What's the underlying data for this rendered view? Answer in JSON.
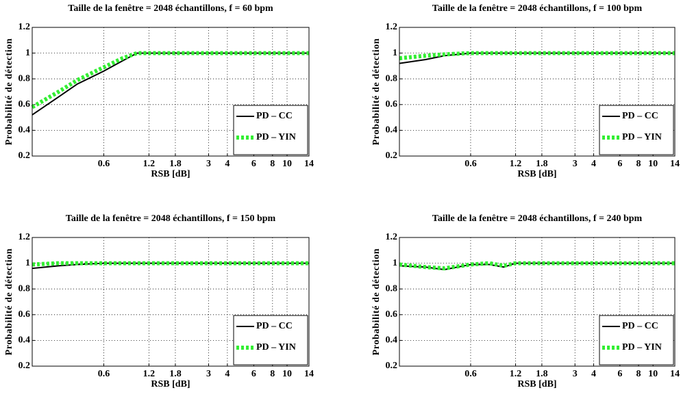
{
  "chart_data": [
    {
      "type": "line",
      "title": "Taille de la fenêtre = 2048 échantillons, f = 60 bpm",
      "x_label": "RSB [dB]",
      "y_label": "Probabilité de détection",
      "x": [
        0.2,
        0.3,
        0.4,
        0.6,
        0.8,
        1.0,
        1.2,
        1.8,
        3,
        4,
        6,
        8,
        10,
        14
      ],
      "series": [
        {
          "name": "PD – CC",
          "color": "#000000",
          "values": [
            0.52,
            0.66,
            0.76,
            0.86,
            0.94,
            1.0,
            1.0,
            1.0,
            1.0,
            1.0,
            1.0,
            1.0,
            1.0,
            1.0
          ]
        },
        {
          "name": "PD – YIN",
          "color": "#33ee33",
          "values": [
            0.58,
            0.7,
            0.79,
            0.89,
            0.96,
            1.0,
            1.0,
            1.0,
            1.0,
            1.0,
            1.0,
            1.0,
            1.0,
            1.0
          ]
        }
      ],
      "xlim": [
        0.2,
        14
      ],
      "xticks": [
        0.6,
        1.2,
        1.8,
        3,
        4,
        6,
        8,
        10,
        14
      ],
      "xscale": "log",
      "ylim": [
        0.2,
        1.2
      ],
      "yticks": [
        0.2,
        0.4,
        0.6,
        0.8,
        1,
        1.2
      ],
      "grid": true,
      "legend": "lower right"
    },
    {
      "type": "line",
      "title": "Taille de la fenêtre = 2048 échantillons, f = 100 bpm",
      "x_label": "RSB [dB]",
      "y_label": "Probabilité de détection",
      "x": [
        0.2,
        0.3,
        0.4,
        0.6,
        0.8,
        1.0,
        1.2,
        1.8,
        3,
        4,
        6,
        8,
        10,
        14
      ],
      "series": [
        {
          "name": "PD – CC",
          "color": "#000000",
          "values": [
            0.92,
            0.95,
            0.98,
            1.0,
            1.0,
            1.0,
            1.0,
            1.0,
            1.0,
            1.0,
            1.0,
            1.0,
            1.0,
            1.0
          ]
        },
        {
          "name": "PD – YIN",
          "color": "#33ee33",
          "values": [
            0.96,
            0.98,
            0.99,
            1.0,
            1.0,
            1.0,
            1.0,
            1.0,
            1.0,
            1.0,
            1.0,
            1.0,
            1.0,
            1.0
          ]
        }
      ],
      "xlim": [
        0.2,
        14
      ],
      "xticks": [
        0.6,
        1.2,
        1.8,
        3,
        4,
        6,
        8,
        10,
        14
      ],
      "xscale": "log",
      "ylim": [
        0.2,
        1.2
      ],
      "yticks": [
        0.2,
        0.4,
        0.6,
        0.8,
        1,
        1.2
      ],
      "grid": true,
      "legend": "lower right"
    },
    {
      "type": "line",
      "title": "Taille de la fenêtre = 2048 échantillons, f = 150 bpm",
      "x_label": "RSB [dB]",
      "y_label": "Probabilité de détection",
      "x": [
        0.2,
        0.3,
        0.4,
        0.6,
        0.8,
        1.0,
        1.2,
        1.8,
        3,
        4,
        6,
        8,
        10,
        14
      ],
      "series": [
        {
          "name": "PD – CC",
          "color": "#000000",
          "values": [
            0.96,
            0.98,
            0.99,
            1.0,
            1.0,
            1.0,
            1.0,
            1.0,
            1.0,
            1.0,
            1.0,
            1.0,
            1.0,
            1.0
          ]
        },
        {
          "name": "PD – YIN",
          "color": "#33ee33",
          "values": [
            0.99,
            1.0,
            1.0,
            1.0,
            1.0,
            1.0,
            1.0,
            1.0,
            1.0,
            1.0,
            1.0,
            1.0,
            1.0,
            1.0
          ]
        }
      ],
      "xlim": [
        0.2,
        14
      ],
      "xticks": [
        0.6,
        1.2,
        1.8,
        3,
        4,
        6,
        8,
        10,
        14
      ],
      "xscale": "log",
      "ylim": [
        0.2,
        1.2
      ],
      "yticks": [
        0.2,
        0.4,
        0.6,
        0.8,
        1,
        1.2
      ],
      "grid": true,
      "legend": "lower right"
    },
    {
      "type": "line",
      "title": "Taille de la fenêtre = 2048 échantillons, f = 240 bpm",
      "x_label": "RSB [dB]",
      "y_label": "Probabilité de détection",
      "x": [
        0.2,
        0.3,
        0.4,
        0.6,
        0.8,
        1.0,
        1.2,
        1.8,
        3,
        4,
        6,
        8,
        10,
        14
      ],
      "series": [
        {
          "name": "PD – CC",
          "color": "#000000",
          "values": [
            0.98,
            0.97,
            0.95,
            0.99,
            0.99,
            0.97,
            1.0,
            1.0,
            1.0,
            1.0,
            1.0,
            1.0,
            1.0,
            1.0
          ]
        },
        {
          "name": "PD – YIN",
          "color": "#33ee33",
          "values": [
            0.99,
            0.97,
            0.96,
            0.99,
            1.0,
            0.98,
            1.0,
            1.0,
            1.0,
            1.0,
            1.0,
            1.0,
            1.0,
            1.0
          ]
        }
      ],
      "xlim": [
        0.2,
        14
      ],
      "xticks": [
        0.6,
        1.2,
        1.8,
        3,
        4,
        6,
        8,
        10,
        14
      ],
      "xscale": "log",
      "ylim": [
        0.2,
        1.2
      ],
      "yticks": [
        0.2,
        0.4,
        0.6,
        0.8,
        1,
        1.2
      ],
      "grid": true,
      "legend": "lower right"
    }
  ]
}
